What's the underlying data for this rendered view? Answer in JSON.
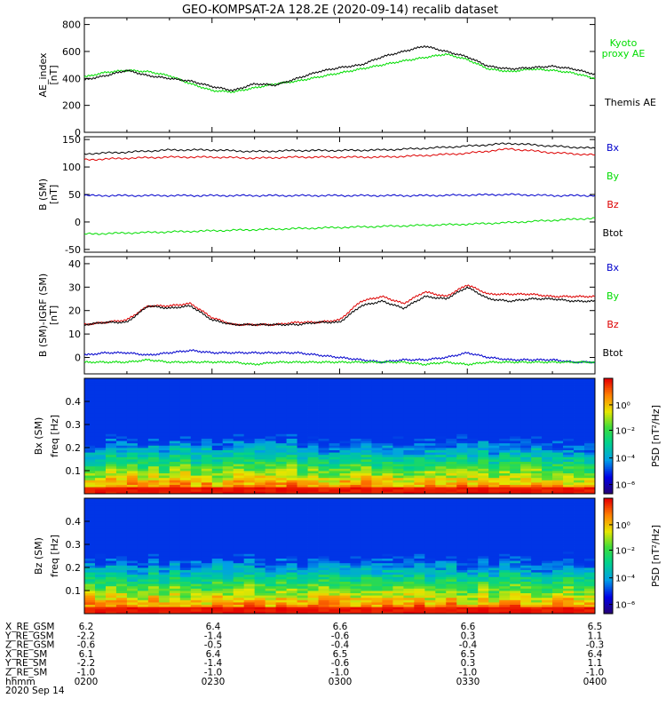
{
  "title": "GEO-KOMPSAT-2A 128.2E (2020-09-14) recalib dataset",
  "chart_data": [
    {
      "type": "line",
      "panel": "ae",
      "ylabel": [
        "AE_index",
        "[nT]"
      ],
      "ylim": [
        0,
        850
      ],
      "yticks": [
        0,
        200,
        400,
        600,
        800
      ],
      "xlim": [
        0,
        120
      ],
      "x": [
        0,
        5,
        10,
        15,
        20,
        25,
        30,
        35,
        40,
        45,
        50,
        55,
        60,
        65,
        70,
        75,
        80,
        85,
        90,
        95,
        100,
        105,
        110,
        115,
        120
      ],
      "series": [
        {
          "name": "Kyoto proxy AE",
          "color": "#00dd00",
          "values": [
            410,
            445,
            460,
            450,
            420,
            360,
            310,
            300,
            330,
            360,
            380,
            410,
            440,
            470,
            500,
            530,
            555,
            580,
            540,
            470,
            450,
            470,
            460,
            440,
            400
          ]
        },
        {
          "name": "Themis AE",
          "color": "#000000",
          "values": [
            390,
            420,
            460,
            420,
            400,
            380,
            340,
            310,
            360,
            350,
            400,
            450,
            480,
            500,
            560,
            600,
            640,
            600,
            560,
            490,
            470,
            480,
            490,
            470,
            430
          ]
        }
      ]
    },
    {
      "type": "line",
      "panel": "b",
      "ylabel": [
        "B (SM)",
        "[nT]"
      ],
      "ylim": [
        -55,
        155
      ],
      "yticks": [
        -50,
        0,
        50,
        100,
        150
      ],
      "xlim": [
        0,
        120
      ],
      "x": [
        0,
        10,
        20,
        30,
        40,
        50,
        60,
        70,
        80,
        90,
        100,
        110,
        120
      ],
      "series": [
        {
          "name": "Bx",
          "color": "#0000cc",
          "values": [
            48,
            48,
            48,
            48,
            48,
            48,
            48,
            48,
            48,
            49,
            50,
            48,
            48
          ]
        },
        {
          "name": "By",
          "color": "#00dd00",
          "values": [
            -22,
            -20,
            -18,
            -16,
            -14,
            -12,
            -10,
            -8,
            -6,
            -4,
            -1,
            3,
            7
          ]
        },
        {
          "name": "Bz",
          "color": "#dd0000",
          "values": [
            113,
            116,
            118,
            118,
            116,
            118,
            118,
            118,
            121,
            125,
            133,
            126,
            122
          ]
        },
        {
          "name": "Btot",
          "color": "#000000",
          "values": [
            124,
            127,
            131,
            131,
            128,
            130,
            130,
            131,
            134,
            138,
            143,
            138,
            134
          ]
        }
      ]
    },
    {
      "type": "line",
      "panel": "dbgse",
      "ylabel": [
        "B (SM)-IGRF (SM)",
        "[nT]"
      ],
      "ylim": [
        -7,
        43
      ],
      "yticks": [
        0,
        10,
        20,
        30,
        40
      ],
      "xlim": [
        0,
        120
      ],
      "x": [
        0,
        5,
        10,
        15,
        20,
        25,
        30,
        35,
        40,
        45,
        50,
        55,
        60,
        65,
        70,
        75,
        80,
        85,
        90,
        95,
        100,
        105,
        110,
        115,
        120
      ],
      "series": [
        {
          "name": "Bx",
          "color": "#0000cc",
          "values": [
            1,
            2,
            2,
            1,
            2,
            3,
            2,
            2,
            2,
            2,
            2,
            1,
            0,
            -1,
            -2,
            -1,
            -1,
            0,
            2,
            0,
            -1,
            -1,
            -1,
            -2,
            -2
          ]
        },
        {
          "name": "By",
          "color": "#00dd00",
          "values": [
            -2,
            -2,
            -2,
            -1,
            -2,
            -2,
            -2,
            -2,
            -3,
            -2,
            -2,
            -2,
            -2,
            -2,
            -2,
            -2,
            -3,
            -2,
            -3,
            -2,
            -2,
            -2,
            -2,
            -2,
            -2
          ]
        },
        {
          "name": "Bz",
          "color": "#dd0000",
          "values": [
            14,
            15,
            16,
            22,
            22,
            23,
            17,
            14,
            14,
            14,
            15,
            15,
            16,
            24,
            26,
            23,
            28,
            26,
            31,
            27,
            27,
            27,
            26,
            26,
            26
          ]
        },
        {
          "name": "Btot",
          "color": "#000000",
          "values": [
            14,
            15,
            15,
            22,
            21,
            22,
            16,
            14,
            14,
            14,
            14,
            15,
            15,
            22,
            24,
            21,
            26,
            25,
            30,
            25,
            24,
            25,
            25,
            24,
            24
          ]
        }
      ]
    },
    {
      "type": "heatmap",
      "panel": "bx_psd",
      "ylabel": [
        "Bx (SM)",
        "freq [Hz]"
      ],
      "ylim": [
        0,
        0.5
      ],
      "yticks": [
        0.1,
        0.2,
        0.3,
        0.4
      ],
      "colorbar_label": "PSD [nT²/Hz]",
      "colorbar_ticks": [
        "10⁰",
        "10⁻²",
        "10⁻⁴",
        "10⁻⁶"
      ]
    },
    {
      "type": "heatmap",
      "panel": "bz_psd",
      "ylabel": [
        "Bz (SM)",
        "freq [Hz]"
      ],
      "ylim": [
        0,
        0.5
      ],
      "yticks": [
        0.1,
        0.2,
        0.3,
        0.4
      ],
      "colorbar_label": "PSD [nT²/Hz]",
      "colorbar_ticks": [
        "10⁰",
        "10⁻²",
        "10⁻⁴",
        "10⁻⁶"
      ]
    }
  ],
  "ae_legend": [
    "Kyoto",
    "proxy AE",
    "Themis AE"
  ],
  "ephemeris": {
    "labels": [
      "X_RE_GSM",
      "Y_RE_GSM",
      "Z_RE_GSM",
      "X_RE_SM",
      "Y_RE_SM",
      "Z_RE_SM",
      "hhmm"
    ],
    "columns": [
      [
        "6.2",
        "-2.2",
        "-0.6",
        "6.1",
        "-2.2",
        "-1.0",
        "0200"
      ],
      [
        "6.4",
        "-1.4",
        "-0.5",
        "6.4",
        "-1.4",
        "-1.0",
        "0230"
      ],
      [
        "6.6",
        "-0.6",
        "-0.4",
        "6.5",
        "-0.6",
        "-1.0",
        "0300"
      ],
      [
        "6.6",
        "0.3",
        "-0.4",
        "6.5",
        "0.3",
        "-1.0",
        "0330"
      ],
      [
        "6.5",
        "1.1",
        "-0.3",
        "6.4",
        "1.1",
        "-1.0",
        "0400"
      ]
    ],
    "date": "2020 Sep 14"
  },
  "colors": {
    "axis": "#000000",
    "bx": "#0000cc",
    "by": "#00dd00",
    "bz": "#dd0000",
    "btot": "#000000",
    "kyoto": "#00dd00"
  }
}
